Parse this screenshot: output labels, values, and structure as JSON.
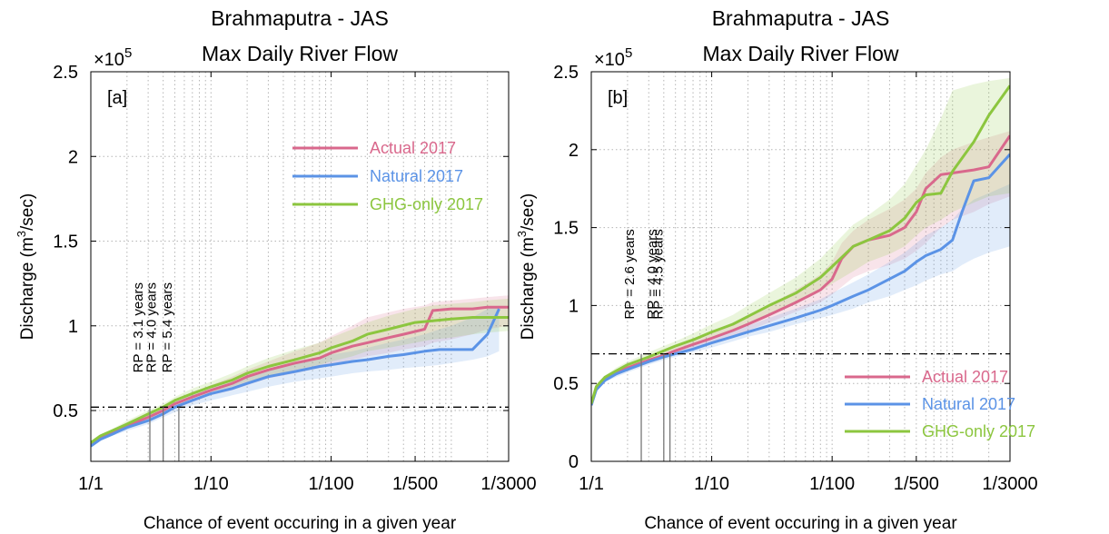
{
  "chart_data": [
    {
      "type": "line",
      "panel_label": "[a]",
      "title_line1": "Brahmaputra - JAS",
      "title_line2": "Max Daily River Flow",
      "exponent_label": "×10",
      "exponent_power": "5",
      "xlabel": "Chance of event occuring in a given year",
      "ylabel_pre": "Discharge (m",
      "ylabel_sup": "3",
      "ylabel_post": "/sec)",
      "x_scale": "log",
      "xlim": [
        1,
        3000
      ],
      "ylim": [
        0.2,
        2.5
      ],
      "x_ticks": [
        1,
        10,
        100,
        500,
        3000
      ],
      "x_tick_labels": [
        "1/1",
        "1/10",
        "1/100",
        "1/500",
        "1/3000"
      ],
      "y_ticks": [
        0.5,
        1,
        1.5,
        2,
        2.5
      ],
      "y_tick_labels": [
        "0.5",
        "1",
        "1.5",
        "2",
        "2.5"
      ],
      "threshold": 0.52,
      "colors": {
        "actual": "#d9688c",
        "natural": "#5b93e6",
        "ghg": "#8cc63f"
      },
      "series": [
        {
          "name": "Actual 2017",
          "key": "actual",
          "x": [
            1,
            1.2,
            1.5,
            2,
            3,
            4,
            5,
            7,
            10,
            15,
            20,
            30,
            50,
            80,
            100,
            150,
            200,
            300,
            400,
            600,
            700,
            1000,
            1500,
            2000,
            3000
          ],
          "y": [
            0.3,
            0.34,
            0.37,
            0.41,
            0.46,
            0.5,
            0.54,
            0.58,
            0.62,
            0.66,
            0.7,
            0.74,
            0.78,
            0.81,
            0.84,
            0.88,
            0.9,
            0.93,
            0.95,
            0.98,
            1.09,
            1.1,
            1.1,
            1.11,
            1.11
          ],
          "band_low": [
            0.29,
            0.33,
            0.36,
            0.39,
            0.44,
            0.48,
            0.51,
            0.55,
            0.59,
            0.62,
            0.65,
            0.69,
            0.72,
            0.75,
            0.77,
            0.8,
            0.82,
            0.84,
            0.86,
            0.88,
            0.9,
            0.92,
            0.95,
            0.98,
            1.0
          ],
          "band_high": [
            0.31,
            0.35,
            0.38,
            0.43,
            0.48,
            0.52,
            0.56,
            0.61,
            0.65,
            0.7,
            0.74,
            0.79,
            0.85,
            0.9,
            0.94,
            1.0,
            1.05,
            1.08,
            1.1,
            1.12,
            1.14,
            1.15,
            1.16,
            1.17,
            1.18
          ]
        },
        {
          "name": "Natural 2017",
          "key": "natural",
          "x": [
            1,
            1.2,
            1.5,
            2,
            3,
            4,
            5,
            7,
            10,
            15,
            20,
            30,
            50,
            80,
            100,
            150,
            200,
            300,
            400,
            600,
            800,
            1000,
            1500,
            2000,
            2500
          ],
          "y": [
            0.29,
            0.33,
            0.36,
            0.4,
            0.44,
            0.48,
            0.52,
            0.56,
            0.6,
            0.63,
            0.66,
            0.7,
            0.73,
            0.76,
            0.77,
            0.79,
            0.8,
            0.82,
            0.83,
            0.85,
            0.86,
            0.86,
            0.86,
            0.95,
            1.1
          ],
          "band_low": [
            0.28,
            0.32,
            0.35,
            0.38,
            0.42,
            0.46,
            0.49,
            0.53,
            0.56,
            0.59,
            0.61,
            0.64,
            0.67,
            0.69,
            0.7,
            0.72,
            0.73,
            0.74,
            0.75,
            0.76,
            0.77,
            0.78,
            0.8,
            0.82,
            0.85
          ],
          "band_high": [
            0.3,
            0.34,
            0.37,
            0.42,
            0.46,
            0.5,
            0.55,
            0.59,
            0.63,
            0.67,
            0.7,
            0.74,
            0.78,
            0.81,
            0.83,
            0.85,
            0.87,
            0.9,
            0.92,
            0.95,
            0.98,
            1.0,
            1.05,
            1.1,
            1.12
          ]
        },
        {
          "name": "GHG-only 2017",
          "key": "ghg",
          "x": [
            1,
            1.2,
            1.5,
            2,
            3,
            4,
            5,
            7,
            10,
            15,
            20,
            30,
            50,
            80,
            100,
            150,
            200,
            300,
            500,
            700,
            1000,
            1500,
            2000,
            3000
          ],
          "y": [
            0.31,
            0.35,
            0.38,
            0.42,
            0.48,
            0.52,
            0.56,
            0.6,
            0.64,
            0.68,
            0.72,
            0.76,
            0.8,
            0.84,
            0.87,
            0.91,
            0.95,
            0.98,
            1.02,
            1.03,
            1.04,
            1.05,
            1.05,
            1.05
          ],
          "band_low": [
            0.3,
            0.34,
            0.37,
            0.4,
            0.46,
            0.5,
            0.53,
            0.57,
            0.61,
            0.64,
            0.67,
            0.7,
            0.74,
            0.77,
            0.79,
            0.82,
            0.85,
            0.87,
            0.9,
            0.92,
            0.93,
            0.95,
            0.96,
            0.97
          ],
          "band_high": [
            0.32,
            0.36,
            0.39,
            0.44,
            0.5,
            0.54,
            0.58,
            0.63,
            0.67,
            0.72,
            0.76,
            0.81,
            0.86,
            0.9,
            0.93,
            0.98,
            1.02,
            1.06,
            1.1,
            1.12,
            1.13,
            1.14,
            1.15,
            1.16
          ]
        }
      ],
      "rp_lines": [
        {
          "x": 3.1,
          "label": "RP = 3.1 years"
        },
        {
          "x": 4.0,
          "label": "RP = 4.0 years"
        },
        {
          "x": 5.4,
          "label": "RP = 5.4 years"
        }
      ],
      "legend": {
        "placement": "upper-right-middle"
      }
    },
    {
      "type": "line",
      "panel_label": "[b]",
      "title_line1": "Brahmaputra - JAS",
      "title_line2": "Max Daily River Flow",
      "exponent_label": "×10",
      "exponent_power": "5",
      "xlabel": "Chance of event occuring in a given year",
      "ylabel_pre": "Discharge (m",
      "ylabel_sup": "3",
      "ylabel_post": "/sec)",
      "x_scale": "log",
      "xlim": [
        1,
        3000
      ],
      "ylim": [
        0,
        2.5
      ],
      "x_ticks": [
        1,
        10,
        100,
        500,
        3000
      ],
      "x_tick_labels": [
        "1/1",
        "1/10",
        "1/100",
        "1/500",
        "1/3000"
      ],
      "y_ticks": [
        0,
        0.5,
        1,
        1.5,
        2,
        2.5
      ],
      "y_tick_labels": [
        "0",
        "0.5",
        "1",
        "1.5",
        "2",
        "2.5"
      ],
      "threshold": 0.69,
      "colors": {
        "actual": "#d9688c",
        "natural": "#5b93e6",
        "ghg": "#8cc63f"
      },
      "series": [
        {
          "name": "Actual 2017",
          "key": "actual",
          "x": [
            1,
            1.1,
            1.3,
            1.6,
            2,
            3,
            4,
            5,
            7,
            10,
            15,
            20,
            30,
            50,
            80,
            100,
            120,
            150,
            200,
            300,
            400,
            500,
            600,
            800,
            1000,
            1500,
            2000,
            3000
          ],
          "y": [
            0.36,
            0.47,
            0.53,
            0.57,
            0.6,
            0.65,
            0.68,
            0.71,
            0.75,
            0.79,
            0.84,
            0.88,
            0.94,
            1.02,
            1.1,
            1.17,
            1.3,
            1.38,
            1.42,
            1.45,
            1.5,
            1.6,
            1.75,
            1.84,
            1.85,
            1.87,
            1.89,
            2.09
          ],
          "band_low": [
            0.35,
            0.46,
            0.52,
            0.55,
            0.58,
            0.63,
            0.66,
            0.69,
            0.72,
            0.76,
            0.8,
            0.84,
            0.89,
            0.96,
            1.02,
            1.07,
            1.12,
            1.18,
            1.22,
            1.26,
            1.3,
            1.35,
            1.4,
            1.5,
            1.55,
            1.6,
            1.65,
            1.7
          ],
          "band_high": [
            0.37,
            0.48,
            0.54,
            0.58,
            0.62,
            0.67,
            0.7,
            0.73,
            0.78,
            0.83,
            0.89,
            0.93,
            1.0,
            1.1,
            1.2,
            1.28,
            1.4,
            1.48,
            1.55,
            1.62,
            1.68,
            1.75,
            1.85,
            1.95,
            2.0,
            2.05,
            2.08,
            2.12
          ]
        },
        {
          "name": "Natural 2017",
          "key": "natural",
          "x": [
            1,
            1.1,
            1.3,
            1.6,
            2,
            3,
            4,
            5,
            7,
            10,
            15,
            20,
            30,
            50,
            80,
            100,
            150,
            200,
            300,
            400,
            500,
            600,
            800,
            1000,
            1200,
            1500,
            2000,
            3000
          ],
          "y": [
            0.36,
            0.46,
            0.52,
            0.56,
            0.59,
            0.64,
            0.67,
            0.69,
            0.72,
            0.76,
            0.8,
            0.83,
            0.87,
            0.92,
            0.97,
            1.0,
            1.06,
            1.1,
            1.17,
            1.22,
            1.28,
            1.32,
            1.36,
            1.42,
            1.6,
            1.8,
            1.82,
            1.97
          ],
          "band_low": [
            0.35,
            0.45,
            0.51,
            0.54,
            0.57,
            0.62,
            0.65,
            0.67,
            0.7,
            0.73,
            0.77,
            0.8,
            0.83,
            0.88,
            0.92,
            0.94,
            0.98,
            1.02,
            1.06,
            1.1,
            1.13,
            1.16,
            1.2,
            1.22,
            1.26,
            1.3,
            1.34,
            1.38
          ],
          "band_high": [
            0.37,
            0.47,
            0.53,
            0.57,
            0.61,
            0.66,
            0.69,
            0.72,
            0.75,
            0.79,
            0.84,
            0.87,
            0.92,
            0.98,
            1.04,
            1.08,
            1.15,
            1.2,
            1.28,
            1.34,
            1.4,
            1.45,
            1.5,
            1.55,
            1.62,
            1.68,
            1.72,
            1.78
          ]
        },
        {
          "name": "GHG-only 2017",
          "key": "ghg",
          "x": [
            1,
            1.1,
            1.3,
            1.6,
            2,
            3,
            4,
            5,
            7,
            10,
            15,
            20,
            30,
            50,
            80,
            100,
            150,
            200,
            300,
            400,
            500,
            600,
            800,
            1000,
            1500,
            2000,
            3000
          ],
          "y": [
            0.37,
            0.48,
            0.54,
            0.58,
            0.62,
            0.67,
            0.71,
            0.74,
            0.78,
            0.83,
            0.88,
            0.93,
            1.0,
            1.08,
            1.18,
            1.25,
            1.38,
            1.42,
            1.48,
            1.56,
            1.66,
            1.71,
            1.72,
            1.86,
            2.05,
            2.22,
            2.41
          ],
          "band_low": [
            0.36,
            0.47,
            0.53,
            0.56,
            0.6,
            0.65,
            0.69,
            0.71,
            0.75,
            0.79,
            0.84,
            0.88,
            0.94,
            1.01,
            1.09,
            1.14,
            1.22,
            1.28,
            1.33,
            1.38,
            1.45,
            1.5,
            1.55,
            1.6,
            1.66,
            1.7,
            1.72
          ],
          "band_high": [
            0.38,
            0.49,
            0.55,
            0.6,
            0.64,
            0.7,
            0.74,
            0.77,
            0.82,
            0.88,
            0.94,
            1.0,
            1.08,
            1.18,
            1.3,
            1.38,
            1.52,
            1.58,
            1.68,
            1.78,
            1.9,
            2.0,
            2.2,
            2.38,
            2.42,
            2.44,
            2.46
          ]
        }
      ],
      "rp_lines": [
        {
          "x": 2.6,
          "label": "RP = 2.6 years"
        },
        {
          "x": 4.0,
          "label": "RP = 4.0 years"
        },
        {
          "x": 4.5,
          "label": "RP = 4.5 years"
        }
      ],
      "legend": {
        "placement": "lower-right"
      }
    }
  ]
}
